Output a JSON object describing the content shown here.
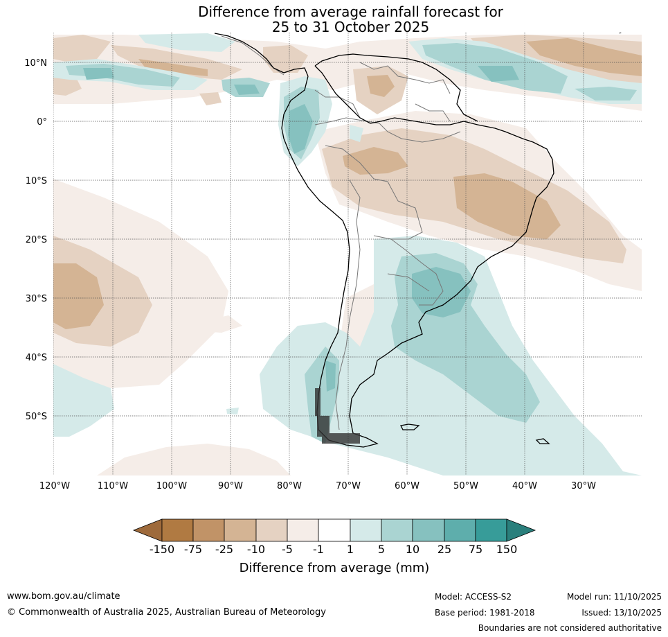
{
  "title": {
    "line1": "Difference from average rainfall forecast for",
    "line2": "25 to 31 October 2025"
  },
  "map": {
    "lat_labels": [
      "10°N",
      "0°",
      "10°S",
      "20°S",
      "30°S",
      "40°S",
      "50°S"
    ],
    "lon_labels": [
      "120°W",
      "110°W",
      "100°W",
      "90°W",
      "80°W",
      "70°W",
      "60°W",
      "50°W",
      "40°W",
      "30°W"
    ],
    "colors": {
      "dry_150": "#9e6a3b",
      "dry_75": "#b07a42",
      "dry_25": "#c19367",
      "dry_10": "#d4b494",
      "dry_5": "#e5d2c2",
      "dry_1": "#f5ede8",
      "neutral": "#ffffff",
      "wet_1": "#d5eae9",
      "wet_5": "#aad4d2",
      "wet_10": "#86c1bf",
      "wet_25": "#5eaeac",
      "wet_75": "#379c99",
      "wet_150": "#2a7f7c"
    }
  },
  "colorbar": {
    "tick_labels": [
      "-150",
      "-75",
      "-25",
      "-10",
      "-5",
      "-1",
      "1",
      "5",
      "10",
      "25",
      "75",
      "150"
    ],
    "title": "Difference from average (mm)"
  },
  "footer": {
    "url": "www.bom.gov.au/climate",
    "copyright": "© Commonwealth of Australia 2025, Australian Bureau of Meteorology",
    "model": "Model: ACCESS-S2",
    "base_period": "Base period: 1981-2018",
    "model_run": "Model run: 11/10/2025",
    "issued": "Issued: 13/10/2025",
    "disclaimer": "Boundaries are not considered authoritative"
  }
}
